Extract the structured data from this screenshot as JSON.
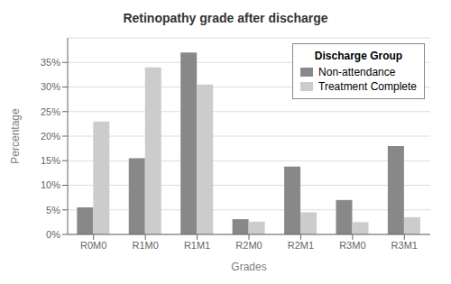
{
  "chart_data": {
    "type": "bar",
    "title": "Retinopathy grade after discharge",
    "xlabel": "Grades",
    "ylabel": "Percentage",
    "categories": [
      "R0M0",
      "R1M0",
      "R1M1",
      "R2M0",
      "R2M1",
      "R3M0",
      "R3M1"
    ],
    "series": [
      {
        "name": "Non-attendance",
        "color": "#888888",
        "values": [
          5.5,
          15.5,
          37.0,
          3.1,
          13.8,
          7.0,
          18.0
        ]
      },
      {
        "name": "Treatment Complete",
        "color": "#cccccc",
        "values": [
          23.0,
          34.0,
          30.5,
          2.6,
          4.5,
          2.5,
          3.5
        ]
      }
    ],
    "ylim": [
      0,
      40
    ],
    "yticks": [
      {
        "value": 0,
        "label": "0%"
      },
      {
        "value": 5,
        "label": "5%"
      },
      {
        "value": 10,
        "label": "10%"
      },
      {
        "value": 15,
        "label": "15%"
      },
      {
        "value": 20,
        "label": "20%"
      },
      {
        "value": 25,
        "label": "25%"
      },
      {
        "value": 30,
        "label": "30%"
      },
      {
        "value": 35,
        "label": "35%"
      }
    ],
    "grid": true,
    "legend": "upper right",
    "legend_title": "Discharge Group"
  }
}
